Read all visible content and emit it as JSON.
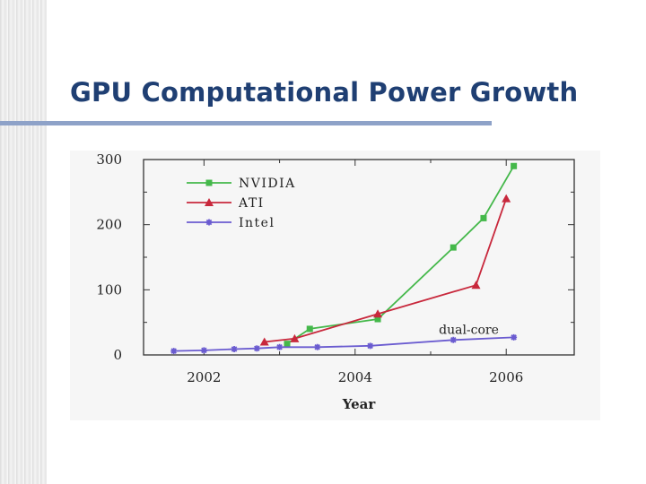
{
  "slide": {
    "title": "GPU Computational Power Growth"
  },
  "chart_data": {
    "type": "line",
    "title": "",
    "xlabel": "Year",
    "ylabel": "",
    "xlim": [
      2001.2,
      2006.9
    ],
    "ylim": [
      0,
      300
    ],
    "xticks": [
      2002,
      2004,
      2006
    ],
    "yticks": [
      0,
      100,
      200,
      300
    ],
    "grid": false,
    "legend_position": "top-left",
    "series": [
      {
        "name": "NVIDIA",
        "color": "#44b84a",
        "marker": "square",
        "points": [
          [
            2003.1,
            17
          ],
          [
            2003.4,
            40
          ],
          [
            2004.3,
            55
          ],
          [
            2005.3,
            165
          ],
          [
            2005.7,
            210
          ],
          [
            2006.1,
            290
          ]
        ]
      },
      {
        "name": "ATI",
        "color": "#c8283c",
        "marker": "triangle",
        "points": [
          [
            2002.8,
            20
          ],
          [
            2003.2,
            25
          ],
          [
            2004.3,
            63
          ],
          [
            2005.6,
            107
          ],
          [
            2006.0,
            240
          ]
        ]
      },
      {
        "name": "Intel",
        "color": "#6a5bd0",
        "marker": "star",
        "points": [
          [
            2001.6,
            6
          ],
          [
            2002.0,
            7
          ],
          [
            2002.4,
            9
          ],
          [
            2002.7,
            10
          ],
          [
            2003.0,
            12
          ],
          [
            2003.5,
            12
          ],
          [
            2004.2,
            14
          ],
          [
            2005.3,
            23
          ],
          [
            2006.1,
            27
          ]
        ]
      }
    ],
    "annotations": [
      {
        "text": "dual-core",
        "x": 5.5,
        "y": 34
      }
    ]
  }
}
